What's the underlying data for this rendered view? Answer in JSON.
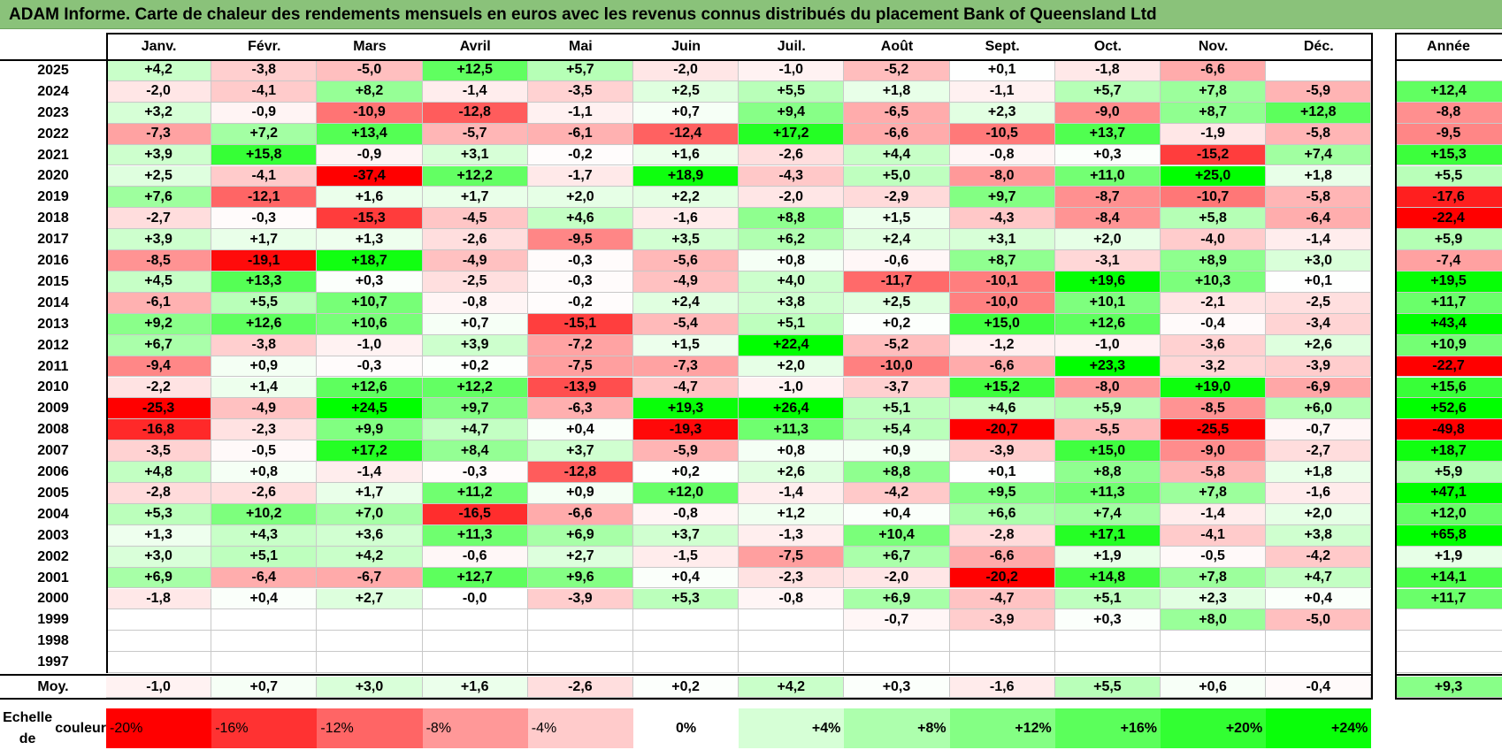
{
  "title": "ADAM Informe. Carte de chaleur des rendements mensuels en euros avec les revenus connus distribués du placement Bank of Queensland Ltd",
  "chart_data": {
    "type": "heatmap",
    "title": "ADAM Informe. Carte de chaleur des rendements mensuels en euros avec les revenus connus distribués du placement Bank of Queensland Ltd",
    "months": [
      "Janv.",
      "Févr.",
      "Mars",
      "Avril",
      "Mai",
      "Juin",
      "Juil.",
      "Août",
      "Sept.",
      "Oct.",
      "Nov.",
      "Déc."
    ],
    "annual_label": "Année",
    "avg_label": "Moy.",
    "rows": [
      {
        "year": "2025",
        "values": [
          "+4,2",
          "-3,8",
          "-5,0",
          "+12,5",
          "+5,7",
          "-2,0",
          "-1,0",
          "-5,2",
          "+0,1",
          "-1,8",
          "-6,6",
          ""
        ],
        "annual": ""
      },
      {
        "year": "2024",
        "values": [
          "-2,0",
          "-4,1",
          "+8,2",
          "-1,4",
          "-3,5",
          "+2,5",
          "+5,5",
          "+1,8",
          "-1,1",
          "+5,7",
          "+7,8",
          "-5,9"
        ],
        "annual": "+12,4"
      },
      {
        "year": "2023",
        "values": [
          "+3,2",
          "-0,9",
          "-10,9",
          "-12,8",
          "-1,1",
          "+0,7",
          "+9,4",
          "-6,5",
          "+2,3",
          "-9,0",
          "+8,7",
          "+12,8"
        ],
        "annual": "-8,8"
      },
      {
        "year": "2022",
        "values": [
          "-7,3",
          "+7,2",
          "+13,4",
          "-5,7",
          "-6,1",
          "-12,4",
          "+17,2",
          "-6,6",
          "-10,5",
          "+13,7",
          "-1,9",
          "-5,8"
        ],
        "annual": "-9,5"
      },
      {
        "year": "2021",
        "values": [
          "+3,9",
          "+15,8",
          "-0,9",
          "+3,1",
          "-0,2",
          "+1,6",
          "-2,6",
          "+4,4",
          "-0,8",
          "+0,3",
          "-15,2",
          "+7,4"
        ],
        "annual": "+15,3"
      },
      {
        "year": "2020",
        "values": [
          "+2,5",
          "-4,1",
          "-37,4",
          "+12,2",
          "-1,7",
          "+18,9",
          "-4,3",
          "+5,0",
          "-8,0",
          "+11,0",
          "+25,0",
          "+1,8"
        ],
        "annual": "+5,5"
      },
      {
        "year": "2019",
        "values": [
          "+7,6",
          "-12,1",
          "+1,6",
          "+1,7",
          "+2,0",
          "+2,2",
          "-2,0",
          "-2,9",
          "+9,7",
          "-8,7",
          "-10,7",
          "-5,8"
        ],
        "annual": "-17,6"
      },
      {
        "year": "2018",
        "values": [
          "-2,7",
          "-0,3",
          "-15,3",
          "-4,5",
          "+4,6",
          "-1,6",
          "+8,8",
          "+1,5",
          "-4,3",
          "-8,4",
          "+5,8",
          "-6,4"
        ],
        "annual": "-22,4"
      },
      {
        "year": "2017",
        "values": [
          "+3,9",
          "+1,7",
          "+1,3",
          "-2,6",
          "-9,5",
          "+3,5",
          "+6,2",
          "+2,4",
          "+3,1",
          "+2,0",
          "-4,0",
          "-1,4"
        ],
        "annual": "+5,9"
      },
      {
        "year": "2016",
        "values": [
          "-8,5",
          "-19,1",
          "+18,7",
          "-4,9",
          "-0,3",
          "-5,6",
          "+0,8",
          "-0,6",
          "+8,7",
          "-3,1",
          "+8,9",
          "+3,0"
        ],
        "annual": "-7,4"
      },
      {
        "year": "2015",
        "values": [
          "+4,5",
          "+13,3",
          "+0,3",
          "-2,5",
          "-0,3",
          "-4,9",
          "+4,0",
          "-11,7",
          "-10,1",
          "+19,6",
          "+10,3",
          "+0,1"
        ],
        "annual": "+19,5"
      },
      {
        "year": "2014",
        "values": [
          "-6,1",
          "+5,5",
          "+10,7",
          "-0,8",
          "-0,2",
          "+2,4",
          "+3,8",
          "+2,5",
          "-10,0",
          "+10,1",
          "-2,1",
          "-2,5"
        ],
        "annual": "+11,7"
      },
      {
        "year": "2013",
        "values": [
          "+9,2",
          "+12,6",
          "+10,6",
          "+0,7",
          "-15,1",
          "-5,4",
          "+5,1",
          "+0,2",
          "+15,0",
          "+12,6",
          "-0,4",
          "-3,4"
        ],
        "annual": "+43,4"
      },
      {
        "year": "2012",
        "values": [
          "+6,7",
          "-3,8",
          "-1,0",
          "+3,9",
          "-7,2",
          "+1,5",
          "+22,4",
          "-5,2",
          "-1,2",
          "-1,0",
          "-3,6",
          "+2,6"
        ],
        "annual": "+10,9"
      },
      {
        "year": "2011",
        "values": [
          "-9,4",
          "+0,9",
          "-0,3",
          "+0,2",
          "-7,5",
          "-7,3",
          "+2,0",
          "-10,0",
          "-6,6",
          "+23,3",
          "-3,2",
          "-3,9"
        ],
        "annual": "-22,7"
      },
      {
        "year": "2010",
        "values": [
          "-2,2",
          "+1,4",
          "+12,6",
          "+12,2",
          "-13,9",
          "-4,7",
          "-1,0",
          "-3,7",
          "+15,2",
          "-8,0",
          "+19,0",
          "-6,9"
        ],
        "annual": "+15,6"
      },
      {
        "year": "2009",
        "values": [
          "-25,3",
          "-4,9",
          "+24,5",
          "+9,7",
          "-6,3",
          "+19,3",
          "+26,4",
          "+5,1",
          "+4,6",
          "+5,9",
          "-8,5",
          "+6,0"
        ],
        "annual": "+52,6"
      },
      {
        "year": "2008",
        "values": [
          "-16,8",
          "-2,3",
          "+9,9",
          "+4,7",
          "+0,4",
          "-19,3",
          "+11,3",
          "+5,4",
          "-20,7",
          "-5,5",
          "-25,5",
          "-0,7"
        ],
        "annual": "-49,8"
      },
      {
        "year": "2007",
        "values": [
          "-3,5",
          "-0,5",
          "+17,2",
          "+8,4",
          "+3,7",
          "-5,9",
          "+0,8",
          "+0,9",
          "-3,9",
          "+15,0",
          "-9,0",
          "-2,7"
        ],
        "annual": "+18,7"
      },
      {
        "year": "2006",
        "values": [
          "+4,8",
          "+0,8",
          "-1,4",
          "-0,3",
          "-12,8",
          "+0,2",
          "+2,6",
          "+8,8",
          "+0,1",
          "+8,8",
          "-5,8",
          "+1,8"
        ],
        "annual": "+5,9"
      },
      {
        "year": "2005",
        "values": [
          "-2,8",
          "-2,6",
          "+1,7",
          "+11,2",
          "+0,9",
          "+12,0",
          "-1,4",
          "-4,2",
          "+9,5",
          "+11,3",
          "+7,8",
          "-1,6"
        ],
        "annual": "+47,1"
      },
      {
        "year": "2004",
        "values": [
          "+5,3",
          "+10,2",
          "+7,0",
          "-16,5",
          "-6,6",
          "-0,8",
          "+1,2",
          "+0,4",
          "+6,6",
          "+7,4",
          "-1,4",
          "+2,0"
        ],
        "annual": "+12,0"
      },
      {
        "year": "2003",
        "values": [
          "+1,3",
          "+4,3",
          "+3,6",
          "+11,3",
          "+6,9",
          "+3,7",
          "-1,3",
          "+10,4",
          "-2,8",
          "+17,1",
          "-4,1",
          "+3,8"
        ],
        "annual": "+65,8"
      },
      {
        "year": "2002",
        "values": [
          "+3,0",
          "+5,1",
          "+4,2",
          "-0,6",
          "+2,7",
          "-1,5",
          "-7,5",
          "+6,7",
          "-6,6",
          "+1,9",
          "-0,5",
          "-4,2"
        ],
        "annual": "+1,9"
      },
      {
        "year": "2001",
        "values": [
          "+6,9",
          "-6,4",
          "-6,7",
          "+12,7",
          "+9,6",
          "+0,4",
          "-2,3",
          "-2,0",
          "-20,2",
          "+14,8",
          "+7,8",
          "+4,7"
        ],
        "annual": "+14,1"
      },
      {
        "year": "2000",
        "values": [
          "-1,8",
          "+0,4",
          "+2,7",
          "-0,0",
          "-3,9",
          "+5,3",
          "-0,8",
          "+6,9",
          "-4,7",
          "+5,1",
          "+2,3",
          "+0,4"
        ],
        "annual": "+11,7"
      },
      {
        "year": "1999",
        "values": [
          "",
          "",
          "",
          "",
          "",
          "",
          "",
          "-0,7",
          "-3,9",
          "+0,3",
          "+8,0",
          "-5,0"
        ],
        "annual": ""
      },
      {
        "year": "1998",
        "values": [
          "",
          "",
          "",
          "",
          "",
          "",
          "",
          "",
          "",
          "",
          "",
          ""
        ],
        "annual": ""
      },
      {
        "year": "1997",
        "values": [
          "",
          "",
          "",
          "",
          "",
          "",
          "",
          "",
          "",
          "",
          "",
          ""
        ],
        "annual": ""
      }
    ],
    "average": {
      "values": [
        "-1,0",
        "+0,7",
        "+3,0",
        "+1,6",
        "-2,6",
        "+0,2",
        "+4,2",
        "+0,3",
        "-1,6",
        "+5,5",
        "+0,6",
        "-0,4"
      ],
      "annual": "+9,3"
    },
    "scale": {
      "label_line1": "Echelle de",
      "label_line2": "couleur",
      "steps": [
        "-20%",
        "-16%",
        "-12%",
        "-8%",
        "-4%",
        "0%",
        "+4%",
        "+8%",
        "+12%",
        "+16%",
        "+20%",
        "+24%"
      ],
      "colors": [
        "#ff0000",
        "#ff3232",
        "#ff6565",
        "#ff9898",
        "#ffcbcb",
        "#ffffff",
        "#d6ffd6",
        "#adffad",
        "#84ff84",
        "#5bff5b",
        "#32ff32",
        "#09ff09"
      ]
    }
  }
}
